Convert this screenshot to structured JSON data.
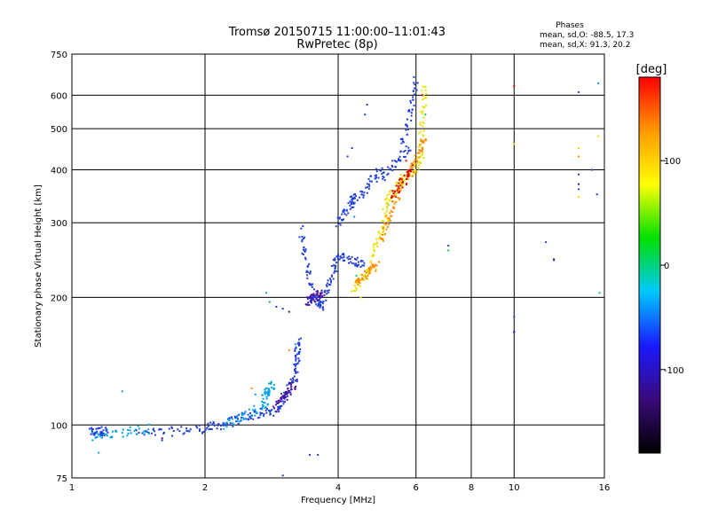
{
  "chart_data": {
    "type": "scatter",
    "title": "Tromsø 20150715 11:00:00–11:01:43",
    "subtitle": "RwPretec (8p)",
    "xlabel": "Frequency [MHz]",
    "ylabel": "Stationary phase Virtual Height [km]",
    "x_scale": "log",
    "y_scale": "log",
    "xlim": [
      1,
      16
    ],
    "ylim": [
      75,
      750
    ],
    "x_ticks": [
      1,
      2,
      4,
      6,
      8,
      10,
      16
    ],
    "y_ticks": [
      75,
      100,
      200,
      300,
      400,
      500,
      600,
      750
    ],
    "grid": true,
    "stats": {
      "heading": "Phases",
      "line_o": "mean, sd,O: -88.5, 17.3",
      "line_x": "mean, sd,X:  91.3, 20.2"
    },
    "colorbar": {
      "label": "[deg]",
      "range": [
        -180,
        180
      ],
      "ticks": [
        100,
        0,
        -100
      ],
      "colormap": [
        "#000000",
        "#3a0a7a",
        "#1a1aff",
        "#00c8ff",
        "#00e000",
        "#ffff00",
        "#ff9900",
        "#ff0000"
      ]
    },
    "series": [
      {
        "color": "#1f3fd8",
        "segments": [
          {
            "x": [
              1.1,
              1.2
            ],
            "y": [
              96,
              97
            ]
          },
          {
            "x": [
              1.4,
              2.0
            ],
            "y": [
              95,
              98
            ]
          },
          {
            "x": [
              2.0,
              2.4
            ],
            "y": [
              98,
              103
            ]
          },
          {
            "x": [
              2.4,
              2.9
            ],
            "y": [
              104,
              108
            ]
          },
          {
            "x": [
              2.9,
              3.2
            ],
            "y": [
              108,
              130
            ]
          },
          {
            "x": [
              3.2,
              3.25
            ],
            "y": [
              130,
              160
            ]
          },
          {
            "x": [
              3.3,
              3.5
            ],
            "y": [
              290,
              200
            ]
          },
          {
            "x": [
              3.45,
              3.7
            ],
            "y": [
              200,
              190
            ]
          },
          {
            "x": [
              3.7,
              4.0
            ],
            "y": [
              200,
              250
            ]
          },
          {
            "x": [
              4.0,
              4.6
            ],
            "y": [
              250,
              240
            ]
          },
          {
            "x": [
              4.0,
              4.4
            ],
            "y": [
              300,
              350
            ]
          },
          {
            "x": [
              4.3,
              5.0
            ],
            "y": [
              330,
              400
            ]
          },
          {
            "x": [
              5.0,
              5.8
            ],
            "y": [
              380,
              450
            ]
          },
          {
            "x": [
              5.6,
              6.0
            ],
            "y": [
              450,
              650
            ]
          }
        ],
        "points": [
          {
            "x": 2.9,
            "y": 190
          },
          {
            "x": 3.0,
            "y": 188
          },
          {
            "x": 3.6,
            "y": 85
          },
          {
            "x": 3.45,
            "y": 85
          },
          {
            "x": 3.0,
            "y": 76
          },
          {
            "x": 4.2,
            "y": 430
          },
          {
            "x": 4.3,
            "y": 450
          },
          {
            "x": 4.6,
            "y": 540
          },
          {
            "x": 4.65,
            "y": 570
          },
          {
            "x": 10.0,
            "y": 180
          },
          {
            "x": 10.0,
            "y": 165
          },
          {
            "x": 11.8,
            "y": 270
          },
          {
            "x": 12.3,
            "y": 245
          },
          {
            "x": 14.0,
            "y": 610
          },
          {
            "x": 14.0,
            "y": 360
          },
          {
            "x": 14.0,
            "y": 390
          },
          {
            "x": 15.0,
            "y": 400
          },
          {
            "x": 15.4,
            "y": 350
          },
          {
            "x": 7.1,
            "y": 265
          },
          {
            "x": 1.6,
            "y": 92
          }
        ]
      },
      {
        "color": "#00a0e8",
        "segments": [
          {
            "x": [
              1.1,
              1.5
            ],
            "y": [
              94,
              98
            ]
          },
          {
            "x": [
              2.2,
              2.8
            ],
            "y": [
              100,
              112
            ]
          },
          {
            "x": [
              2.7,
              2.85
            ],
            "y": [
              115,
              125
            ]
          }
        ],
        "points": [
          {
            "x": 1.15,
            "y": 86
          },
          {
            "x": 1.3,
            "y": 120
          },
          {
            "x": 2.6,
            "y": 118
          },
          {
            "x": 2.75,
            "y": 205
          },
          {
            "x": 2.8,
            "y": 195
          },
          {
            "x": 3.2,
            "y": 155
          },
          {
            "x": 4.35,
            "y": 310
          },
          {
            "x": 15.5,
            "y": 640
          }
        ]
      },
      {
        "color": "#00d050",
        "segments": [],
        "points": [
          {
            "x": 4.4,
            "y": 225
          },
          {
            "x": 5.2,
            "y": 330
          },
          {
            "x": 6.3,
            "y": 540
          },
          {
            "x": 6.2,
            "y": 450
          },
          {
            "x": 15.6,
            "y": 205
          },
          {
            "x": 7.1,
            "y": 258
          }
        ]
      },
      {
        "color": "#e8e000",
        "segments": [
          {
            "x": [
              4.3,
              4.8
            ],
            "y": [
              210,
              235
            ]
          },
          {
            "x": [
              4.7,
              5.2
            ],
            "y": [
              240,
              320
            ]
          },
          {
            "x": [
              5.1,
              5.6
            ],
            "y": [
              330,
              380
            ]
          },
          {
            "x": [
              5.5,
              6.2
            ],
            "y": [
              370,
              420
            ]
          },
          {
            "x": [
              6.1,
              6.3
            ],
            "y": [
              420,
              640
            ]
          }
        ],
        "points": [
          {
            "x": 14.0,
            "y": 345
          },
          {
            "x": 14.0,
            "y": 450
          },
          {
            "x": 15.5,
            "y": 480
          },
          {
            "x": 4.5,
            "y": 200
          },
          {
            "x": 10.0,
            "y": 460
          }
        ]
      },
      {
        "color": "#ff8800",
        "segments": [
          {
            "x": [
              4.4,
              4.9
            ],
            "y": [
              215,
              240
            ]
          },
          {
            "x": [
              5.0,
              5.5
            ],
            "y": [
              270,
              360
            ]
          },
          {
            "x": [
              5.8,
              6.3
            ],
            "y": [
              380,
              480
            ]
          }
        ],
        "points": [
          {
            "x": 2.55,
            "y": 122
          },
          {
            "x": 3.1,
            "y": 150
          },
          {
            "x": 14.0,
            "y": 430
          }
        ]
      },
      {
        "color": "#e00000",
        "segments": [
          {
            "x": [
              5.3,
              5.9
            ],
            "y": [
              350,
              400
            ]
          }
        ],
        "points": [
          {
            "x": 10.0,
            "y": 630
          },
          {
            "x": 6.2,
            "y": 600
          },
          {
            "x": 5.7,
            "y": 420
          }
        ]
      },
      {
        "color": "#4b0fa0",
        "segments": [
          {
            "x": [
              2.9,
              3.2
            ],
            "y": [
              110,
              125
            ]
          },
          {
            "x": [
              3.4,
              3.7
            ],
            "y": [
              195,
              205
            ]
          }
        ],
        "points": [
          {
            "x": 1.6,
            "y": 93
          },
          {
            "x": 3.1,
            "y": 185
          },
          {
            "x": 10.0,
            "y": 166
          },
          {
            "x": 14.0,
            "y": 370
          },
          {
            "x": 12.3,
            "y": 246
          }
        ]
      }
    ]
  }
}
